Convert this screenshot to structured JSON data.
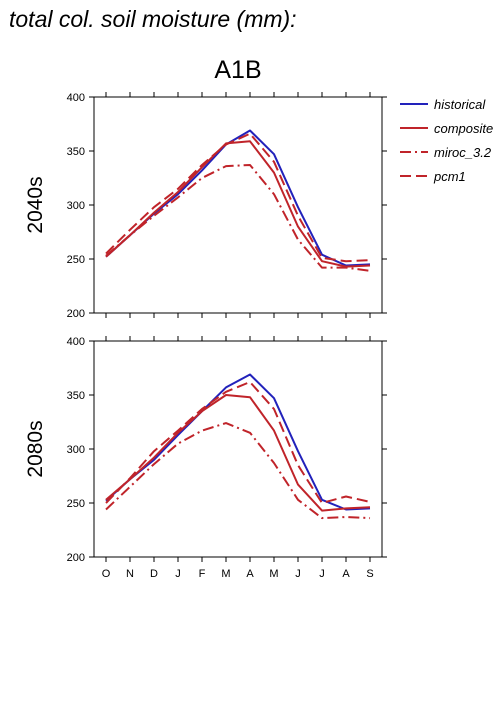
{
  "heading": "total col. soil moisture (mm):",
  "colors": {
    "historical": "#2222bb",
    "projection": "#c0242a"
  },
  "chart_data": {
    "type": "line",
    "title": "A1B",
    "categories": [
      "O",
      "N",
      "D",
      "J",
      "F",
      "M",
      "A",
      "M",
      "J",
      "J",
      "A",
      "S"
    ],
    "ylim": [
      200,
      400
    ],
    "yticks": [
      "200",
      "250",
      "300",
      "350",
      "400"
    ],
    "grid": false,
    "legend_position": "top-right",
    "legend": [
      {
        "label": "historical",
        "color": "#2222bb",
        "dash": "solid"
      },
      {
        "label": "composite",
        "color": "#c0242a",
        "dash": "solid"
      },
      {
        "label": "miroc_3.2",
        "color": "#c0242a",
        "dash": "dashdot"
      },
      {
        "label": "pcm1",
        "color": "#c0242a",
        "dash": "dashed"
      }
    ],
    "panels": [
      {
        "label": "2040s",
        "series": [
          {
            "name": "historical",
            "values": [
              252,
              272,
              292,
              310,
              332,
              356,
              369,
              347,
              298,
              254,
              244,
              245
            ]
          },
          {
            "name": "composite",
            "values": [
              252,
              272,
              293,
              312,
              335,
              357,
              359,
              330,
              280,
              248,
              243,
              244
            ]
          },
          {
            "name": "miroc_3.2",
            "values": [
              253,
              272,
              290,
              307,
              325,
              336,
              337,
              310,
              268,
              242,
              242,
              239
            ]
          },
          {
            "name": "pcm1",
            "values": [
              255,
              277,
              298,
              315,
              337,
              356,
              366,
              340,
              290,
              251,
              248,
              249
            ]
          }
        ]
      },
      {
        "label": "2080s",
        "series": [
          {
            "name": "historical",
            "values": [
              252,
              272,
              290,
              313,
              335,
              357,
              369,
              347,
              298,
              253,
              244,
              245
            ]
          },
          {
            "name": "composite",
            "values": [
              253,
              272,
              292,
              315,
              335,
              350,
              348,
              317,
              267,
              243,
              245,
              246
            ]
          },
          {
            "name": "miroc_3.2",
            "values": [
              244,
              265,
              286,
              305,
              317,
              324,
              315,
              287,
              253,
              236,
              237,
              236
            ]
          },
          {
            "name": "pcm1",
            "values": [
              250,
              273,
              298,
              317,
              337,
              353,
              362,
              337,
              285,
              250,
              256,
              251
            ]
          }
        ]
      }
    ]
  }
}
